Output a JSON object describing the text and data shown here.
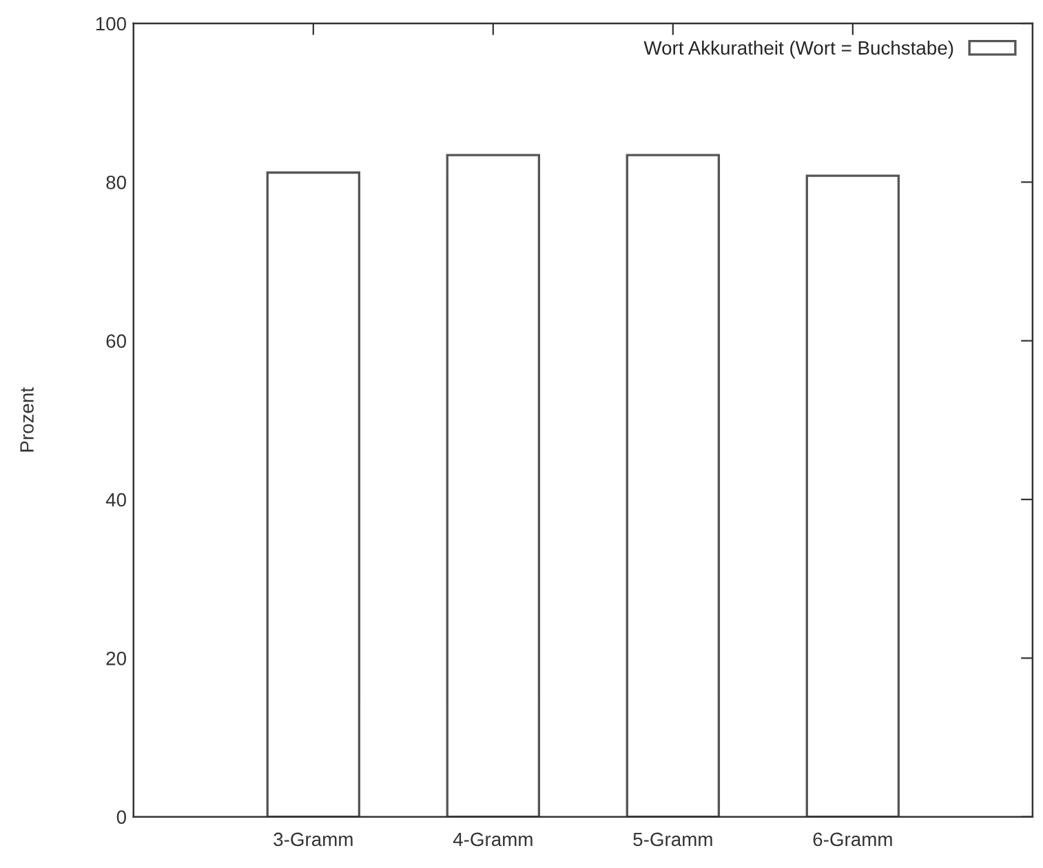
{
  "chart_data": {
    "type": "bar",
    "ylabel": "Prozent",
    "categories": [
      null,
      "3-Gramm",
      "4-Gramm",
      "5-Gramm",
      "6-Gramm",
      null
    ],
    "series": [
      {
        "name": "Wort Akkuratheit (Wort = Buchstabe)",
        "color": "#ffffff",
        "values": [
          null,
          81.2,
          83.4,
          83.4,
          80.8,
          null
        ]
      }
    ],
    "ylim": [
      0,
      100
    ],
    "yticks": [
      0,
      20,
      40,
      60,
      80,
      100
    ],
    "grid": false,
    "legend": "top right"
  }
}
